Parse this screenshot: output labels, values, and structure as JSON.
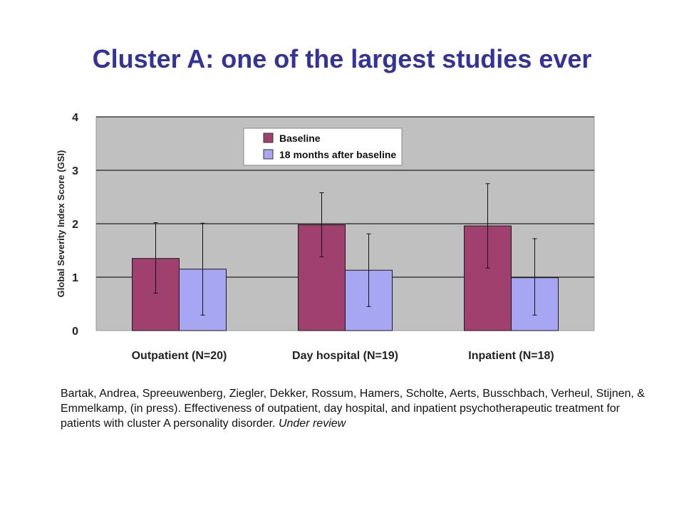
{
  "slide": {
    "title": "Cluster A: one of the largest studies ever"
  },
  "citation": {
    "text": "Bartak, Andrea, Spreeuwenberg, Ziegler, Dekker, Rossum, Hamers, Scholte, Aerts,  Busschbach, Verheul, Stijnen, & Emmelkamp, (in press). Effectiveness of outpatient, day hospital, and inpatient psychotherapeutic treatment for patients with cluster A personality disorder.",
    "note": "Under review"
  },
  "chart_data": {
    "type": "bar",
    "title": "",
    "xlabel": "",
    "ylabel": "Global Severity Index Score (GSI)",
    "ylim": [
      0,
      4
    ],
    "yticks": [
      "0",
      "1",
      "2",
      "3",
      "4"
    ],
    "grid": true,
    "legend_position": "top-center",
    "categories": [
      "Outpatient (N=20)",
      "Day hospital (N=19)",
      "Inpatient (N=18)"
    ],
    "series": [
      {
        "name": "Baseline",
        "color": "#a0406f",
        "values": [
          1.35,
          1.98,
          1.96
        ],
        "error_low": [
          0.7,
          1.38,
          1.17
        ],
        "error_high": [
          2.02,
          2.58,
          2.75
        ]
      },
      {
        "name": "18 months after baseline",
        "color": "#a6a6f2",
        "values": [
          1.15,
          1.13,
          0.99
        ],
        "error_low": [
          0.29,
          0.45,
          0.29
        ],
        "error_high": [
          2.01,
          1.81,
          1.72
        ]
      }
    ],
    "plot_background": "#c0c0c0"
  }
}
